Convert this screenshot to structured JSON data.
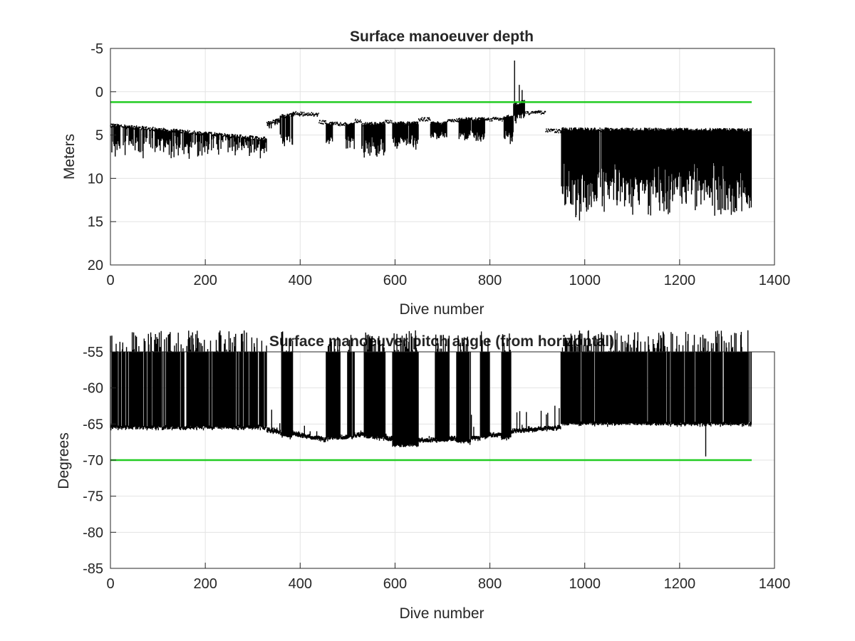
{
  "chart_data": [
    {
      "type": "line",
      "title": "Surface manoeuver depth",
      "xlabel": "Dive number",
      "ylabel": "Meters",
      "xlim": [
        0,
        1400
      ],
      "ylim": [
        20,
        -5
      ],
      "y_reversed": true,
      "grid": true,
      "x_ticks": [
        "0",
        "200",
        "400",
        "600",
        "800",
        "1000",
        "1200",
        "1400"
      ],
      "y_ticks": [
        "-5",
        "0",
        "5",
        "10",
        "15",
        "20"
      ],
      "x_tick_values": [
        0,
        200,
        400,
        600,
        800,
        1000,
        1200,
        1400
      ],
      "y_tick_values": [
        -5,
        0,
        5,
        10,
        15,
        20
      ],
      "threshold": {
        "value": 1.2,
        "x_range": [
          0,
          1352
        ],
        "color": "#22cc22"
      },
      "series_color": "#000000",
      "segments": [
        {
          "x": [
            0,
            330
          ],
          "base": [
            3.8,
            5.4
          ],
          "dip_max": [
            5.4,
            8.0
          ],
          "density": 0.55
        },
        {
          "x": [
            330,
            358
          ],
          "base": [
            3.6,
            3.2
          ],
          "dip_max": [
            3.6,
            4.5
          ],
          "density": 0.3
        },
        {
          "x": [
            358,
            385
          ],
          "base": [
            2.8,
            2.6
          ],
          "dip_max": [
            5.8,
            6.5
          ],
          "density": 0.8
        },
        {
          "x": [
            385,
            440
          ],
          "base": [
            2.4,
            2.6
          ],
          "dip_max": [
            2.7,
            3.0
          ],
          "density": 0.2
        },
        {
          "x": [
            440,
            455
          ],
          "base": [
            3.4,
            3.5
          ],
          "dip_max": [
            3.5,
            3.6
          ],
          "density": 0.1
        },
        {
          "x": [
            455,
            470
          ],
          "base": [
            3.6,
            3.6
          ],
          "dip_max": [
            5.5,
            6.1
          ],
          "density": 0.8
        },
        {
          "x": [
            470,
            495
          ],
          "base": [
            3.6,
            3.7
          ],
          "dip_max": [
            3.8,
            3.9
          ],
          "density": 0.1
        },
        {
          "x": [
            495,
            515
          ],
          "base": [
            3.7,
            3.7
          ],
          "dip_max": [
            6.2,
            7.1
          ],
          "density": 0.8
        },
        {
          "x": [
            515,
            530
          ],
          "base": [
            3.3,
            3.3
          ],
          "dip_max": [
            3.4,
            3.5
          ],
          "density": 0.1
        },
        {
          "x": [
            530,
            580
          ],
          "base": [
            3.7,
            3.6
          ],
          "dip_max": [
            6.3,
            8.3
          ],
          "density": 0.85
        },
        {
          "x": [
            580,
            595
          ],
          "base": [
            3.4,
            3.4
          ],
          "dip_max": [
            3.5,
            3.6
          ],
          "density": 0.1
        },
        {
          "x": [
            595,
            650
          ],
          "base": [
            3.6,
            3.6
          ],
          "dip_max": [
            5.5,
            7.0
          ],
          "density": 0.85
        },
        {
          "x": [
            650,
            675
          ],
          "base": [
            3.1,
            3.1
          ],
          "dip_max": [
            3.2,
            3.3
          ],
          "density": 0.1
        },
        {
          "x": [
            675,
            710
          ],
          "base": [
            3.6,
            3.6
          ],
          "dip_max": [
            5.0,
            5.5
          ],
          "density": 0.85
        },
        {
          "x": [
            710,
            735
          ],
          "base": [
            3.2,
            3.2
          ],
          "dip_max": [
            3.3,
            3.4
          ],
          "density": 0.1
        },
        {
          "x": [
            735,
            790
          ],
          "base": [
            3.1,
            3.1
          ],
          "dip_max": [
            5.5,
            5.8
          ],
          "density": 0.85
        },
        {
          "x": [
            790,
            830
          ],
          "base": [
            3.1,
            3.1
          ],
          "dip_max": [
            3.2,
            3.3
          ],
          "density": 0.1
        },
        {
          "x": [
            830,
            850
          ],
          "base": [
            2.9,
            2.8
          ],
          "dip_max": [
            5.5,
            6.3
          ],
          "density": 0.85
        },
        {
          "x": [
            850,
            875
          ],
          "base": [
            1.5,
            1.0
          ],
          "dip_max": [
            3.0,
            4.0
          ],
          "density": 0.9,
          "spikes": [
            [
              852,
              -3.6
            ],
            [
              862,
              -0.8
            ],
            [
              868,
              -0.2
            ]
          ]
        },
        {
          "x": [
            875,
            918
          ],
          "base": [
            2.4,
            2.3
          ],
          "dip_max": [
            2.5,
            2.6
          ],
          "density": 0.2
        },
        {
          "x": [
            918,
            950
          ],
          "base": [
            4.4,
            4.5
          ],
          "dip_max": [
            4.6,
            4.7
          ],
          "density": 0.1
        },
        {
          "x": [
            950,
            1352
          ],
          "base": [
            4.3,
            4.4
          ],
          "dip_max": [
            10.5,
            15.2
          ],
          "density": 0.9
        }
      ]
    },
    {
      "type": "line",
      "title": "Surface manoeuver pitch angle (from horizontal)",
      "xlabel": "Dive number",
      "ylabel": "Degrees",
      "xlim": [
        0,
        1400
      ],
      "ylim": [
        -85,
        -55
      ],
      "grid": true,
      "x_ticks": [
        "0",
        "200",
        "400",
        "600",
        "800",
        "1000",
        "1200",
        "1400"
      ],
      "y_ticks": [
        "-55",
        "-60",
        "-65",
        "-70",
        "-75",
        "-80",
        "-85"
      ],
      "x_tick_values": [
        0,
        200,
        400,
        600,
        800,
        1000,
        1200,
        1400
      ],
      "y_tick_values": [
        -55,
        -60,
        -65,
        -70,
        -75,
        -80,
        -85
      ],
      "threshold": {
        "value": -70,
        "x_range": [
          0,
          1352
        ],
        "color": "#22cc22"
      },
      "series_color": "#000000",
      "segments": [
        {
          "x": [
            0,
            330
          ],
          "base": [
            -65.5,
            -65.5
          ],
          "top": -55,
          "density": 0.7
        },
        {
          "x": [
            330,
            360
          ],
          "base": [
            -65.8,
            -66.2
          ],
          "top": -65.5,
          "density": 0.1
        },
        {
          "x": [
            360,
            385
          ],
          "base": [
            -66.5,
            -66.8
          ],
          "top": -55,
          "density": 0.9
        },
        {
          "x": [
            385,
            455
          ],
          "base": [
            -66.3,
            -67.2
          ],
          "top": -66.0,
          "density": 0.1
        },
        {
          "x": [
            455,
            485
          ],
          "base": [
            -67.0,
            -67.0
          ],
          "top": -55,
          "density": 0.9
        },
        {
          "x": [
            485,
            500
          ],
          "base": [
            -66.8,
            -66.8
          ],
          "top": -66.5,
          "density": 0.1
        },
        {
          "x": [
            500,
            515
          ],
          "base": [
            -66.8,
            -66.8
          ],
          "top": -55,
          "density": 0.9
        },
        {
          "x": [
            515,
            535
          ],
          "base": [
            -66.5,
            -66.5
          ],
          "top": -66.2,
          "density": 0.1
        },
        {
          "x": [
            535,
            580
          ],
          "base": [
            -66.8,
            -67.0
          ],
          "top": -55,
          "density": 0.9
        },
        {
          "x": [
            580,
            595
          ],
          "base": [
            -67.0,
            -67.0
          ],
          "top": -66.7,
          "density": 0.1
        },
        {
          "x": [
            595,
            650
          ],
          "base": [
            -68.0,
            -68.0
          ],
          "top": -55,
          "density": 0.95
        },
        {
          "x": [
            650,
            685
          ],
          "base": [
            -67.2,
            -67.2
          ],
          "top": -67.0,
          "density": 0.1
        },
        {
          "x": [
            685,
            715
          ],
          "base": [
            -67.3,
            -67.3
          ],
          "top": -55,
          "density": 0.9
        },
        {
          "x": [
            715,
            730
          ],
          "base": [
            -67.0,
            -67.0
          ],
          "top": -66.7,
          "density": 0.1
        },
        {
          "x": [
            730,
            760
          ],
          "base": [
            -67.5,
            -67.5
          ],
          "top": -55,
          "density": 0.9
        },
        {
          "x": [
            760,
            780
          ],
          "base": [
            -67.0,
            -67.0
          ],
          "top": -66.7,
          "density": 0.1
        },
        {
          "x": [
            780,
            800
          ],
          "base": [
            -66.8,
            -66.8
          ],
          "top": -55,
          "density": 0.9
        },
        {
          "x": [
            800,
            825
          ],
          "base": [
            -66.5,
            -66.5
          ],
          "top": -66.2,
          "density": 0.1
        },
        {
          "x": [
            825,
            845
          ],
          "base": [
            -67.0,
            -67.0
          ],
          "top": -55,
          "density": 0.9
        },
        {
          "x": [
            845,
            950
          ],
          "base": [
            -66.0,
            -65.5
          ],
          "top": -65.3,
          "density": 0.15
        },
        {
          "x": [
            950,
            1352
          ],
          "base": [
            -65.0,
            -65.0
          ],
          "top": -55,
          "density": 0.85,
          "spikes": [
            [
              1255,
              -69.5
            ]
          ]
        }
      ]
    }
  ]
}
